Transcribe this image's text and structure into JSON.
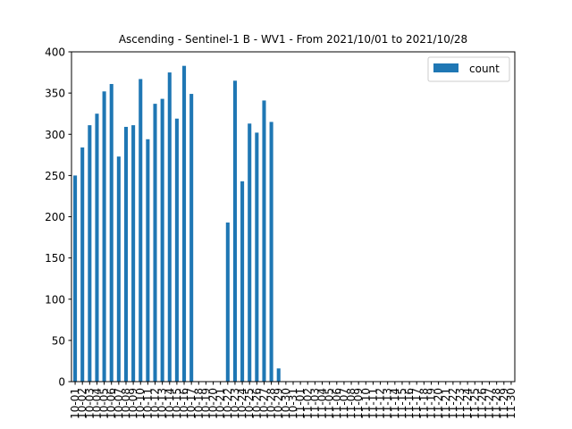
{
  "chart_data": {
    "type": "bar",
    "title": "Ascending - Sentinel-1 B - WV1 - From 2021/10/01 to 2021/10/28",
    "xlabel": "",
    "ylabel": "",
    "ylim": [
      0,
      400
    ],
    "yticks": [
      0,
      50,
      100,
      150,
      200,
      250,
      300,
      350,
      400
    ],
    "grid": false,
    "legend_position": "top-right",
    "bar_color": "#1f77b4",
    "categories": [
      "10-01",
      "10-02",
      "10-03",
      "10-04",
      "10-05",
      "10-06",
      "10-07",
      "10-08",
      "10-09",
      "10-10",
      "10-11",
      "10-12",
      "10-13",
      "10-14",
      "10-15",
      "10-16",
      "10-17",
      "10-18",
      "10-19",
      "10-20",
      "10-21",
      "10-22",
      "10-23",
      "10-24",
      "10-25",
      "10-26",
      "10-27",
      "10-28",
      "10-29",
      "10-30",
      "10-31",
      "11-01",
      "11-02",
      "11-03",
      "11-04",
      "11-05",
      "11-06",
      "11-07",
      "11-08",
      "11-09",
      "11-10",
      "11-11",
      "11-12",
      "11-13",
      "11-14",
      "11-15",
      "11-16",
      "11-17",
      "11-18",
      "11-19",
      "11-20",
      "11-21",
      "11-22",
      "11-23",
      "11-24",
      "11-25",
      "11-26",
      "11-27",
      "11-28",
      "11-29",
      "11-30"
    ],
    "series": [
      {
        "name": "count",
        "values": [
          250,
          284,
          311,
          325,
          352,
          361,
          273,
          309,
          311,
          367,
          294,
          337,
          343,
          375,
          319,
          383,
          349,
          0,
          0,
          0,
          0,
          193,
          365,
          243,
          313,
          302,
          341,
          315,
          16,
          0,
          0,
          0,
          0,
          0,
          0,
          0,
          0,
          0,
          0,
          0,
          0,
          0,
          0,
          0,
          0,
          0,
          0,
          0,
          0,
          0,
          0,
          0,
          0,
          0,
          0,
          0,
          0,
          0,
          0,
          0,
          0
        ]
      }
    ]
  }
}
